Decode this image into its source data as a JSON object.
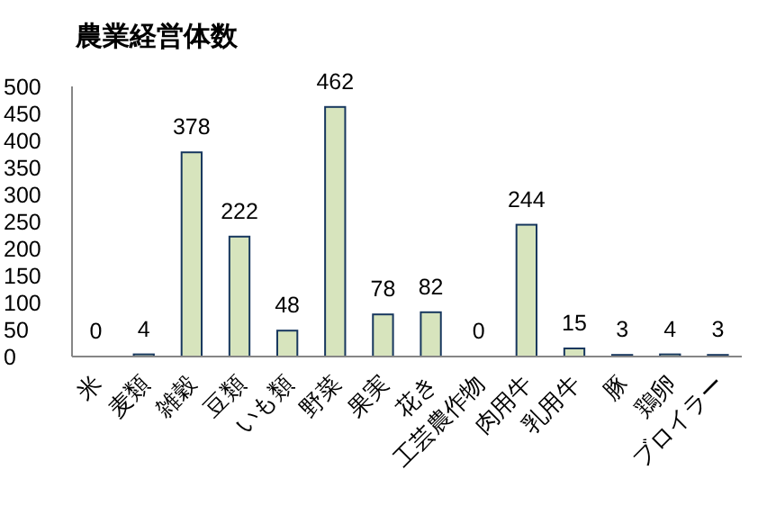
{
  "chart_data": {
    "type": "bar",
    "title": "農業経営体数",
    "categories": [
      "米",
      "麦類",
      "雑穀",
      "豆類",
      "いも類",
      "野菜",
      "果実",
      "花き",
      "工芸農作物",
      "肉用牛",
      "乳用牛",
      "豚",
      "鶏卵",
      "ブロイラー"
    ],
    "values": [
      0,
      4,
      378,
      222,
      48,
      462,
      78,
      82,
      0,
      244,
      15,
      3,
      4,
      3
    ],
    "color": "#d7e4bd",
    "ylim": [
      0,
      500
    ],
    "yticks": [
      0,
      50,
      100,
      150,
      200,
      250,
      300,
      350,
      400,
      450,
      500
    ],
    "data_labels": true
  }
}
